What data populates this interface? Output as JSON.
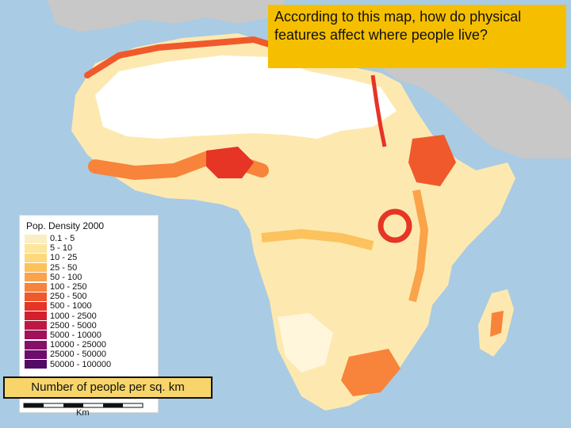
{
  "question": "According to this map, how do physical features affect where people live?",
  "legend": {
    "title": "Pop. Density 2000",
    "items": [
      {
        "label": "0.1 - 5",
        "color": "#fbeec4"
      },
      {
        "label": "5 - 10",
        "color": "#fde59b"
      },
      {
        "label": "10 - 25",
        "color": "#fdd97b"
      },
      {
        "label": "25 - 50",
        "color": "#fcc25d"
      },
      {
        "label": "50 - 100",
        "color": "#fba34a"
      },
      {
        "label": "100 - 250",
        "color": "#f8833a"
      },
      {
        "label": "250 - 500",
        "color": "#f0592b"
      },
      {
        "label": "500 - 1000",
        "color": "#e63425"
      },
      {
        "label": "1000 - 2500",
        "color": "#d41f2e"
      },
      {
        "label": "2500 - 5000",
        "color": "#bd1845"
      },
      {
        "label": "5000 - 10000",
        "color": "#a1125a"
      },
      {
        "label": "10000 - 25000",
        "color": "#861068"
      },
      {
        "label": "25000 - 50000",
        "color": "#6c0c6c"
      },
      {
        "label": "50000 - 100000",
        "color": "#520a64"
      }
    ]
  },
  "caption": "Number of people per sq. km",
  "scale": {
    "unit": "Km"
  },
  "colors": {
    "ocean": "#a9cbe4",
    "land_other": "#c8c8c8",
    "desert": "#ffffff",
    "land_base": "#fde9b0",
    "question_bg": "#f5bf00"
  }
}
